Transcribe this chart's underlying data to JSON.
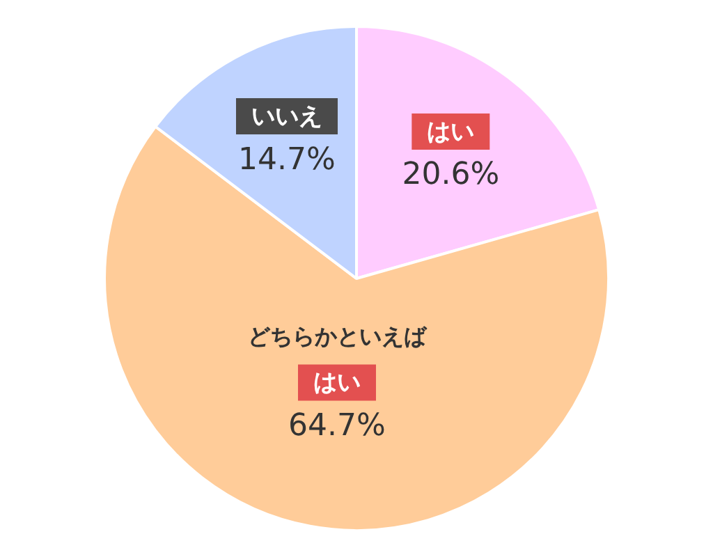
{
  "chart_data": {
    "type": "pie",
    "categories": [
      "はい",
      "どちらかといえばはい",
      "いいえ"
    ],
    "values": [
      20.6,
      64.7,
      14.7
    ],
    "value_labels": [
      "20.6%",
      "64.7%",
      "14.7%"
    ],
    "colors": [
      "#ffccff",
      "#ffcc99",
      "#bfd3ff"
    ],
    "legend": false
  }
}
